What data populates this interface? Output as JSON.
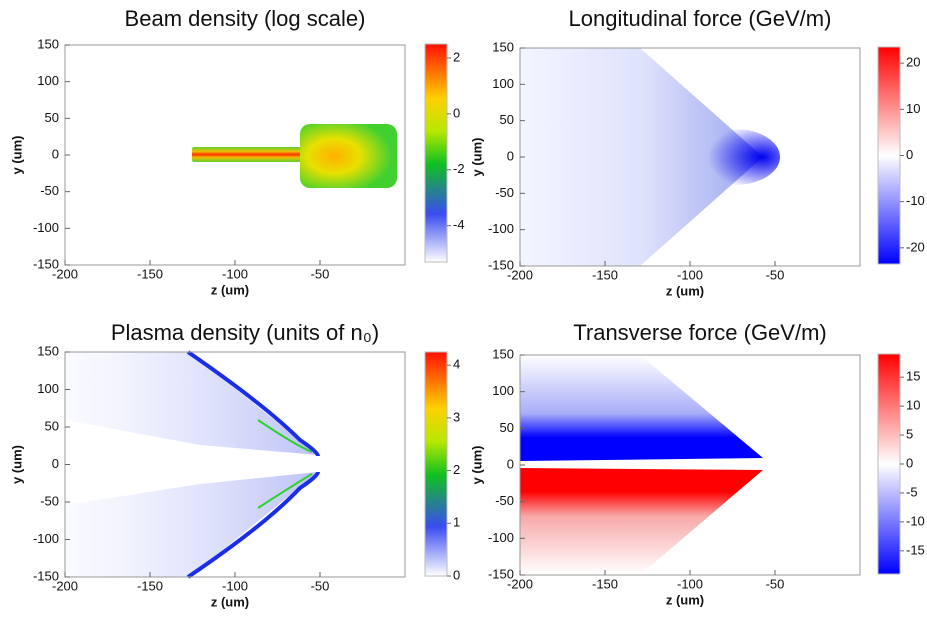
{
  "chart_data": [
    {
      "type": "heatmap",
      "title": "Beam density (log scale)",
      "xlabel": "z (um)",
      "ylabel": "y (um)",
      "xlim": [
        -200,
        0
      ],
      "xticks": [
        -200,
        -150,
        -100,
        -50
      ],
      "ylim": [
        -150,
        150
      ],
      "yticks": [
        -150,
        -100,
        -50,
        0,
        50,
        100,
        150
      ],
      "clim": [
        -5.3,
        2.5
      ],
      "cticks": [
        -4,
        -2,
        0,
        2
      ]
    },
    {
      "type": "heatmap",
      "title": "Longitudinal force (GeV/m)",
      "xlabel": "z (um)",
      "ylabel": "y (um)",
      "xlim": [
        -200,
        0
      ],
      "xticks": [
        -200,
        -150,
        -100,
        -50
      ],
      "ylim": [
        -150,
        150
      ],
      "yticks": [
        -150,
        -100,
        -50,
        0,
        50,
        100,
        150
      ],
      "clim": [
        -23.5,
        23.5
      ],
      "cticks": [
        -20,
        -10,
        0,
        10,
        20
      ]
    },
    {
      "type": "heatmap",
      "title": "Plasma density (units of n₀)",
      "xlabel": "z (um)",
      "ylabel": "y (um)",
      "xlim": [
        -200,
        0
      ],
      "xticks": [
        -200,
        -150,
        -100,
        -50
      ],
      "ylim": [
        -150,
        150
      ],
      "yticks": [
        -150,
        -100,
        -50,
        0,
        50,
        100,
        150
      ],
      "clim": [
        0,
        4.25
      ],
      "cticks": [
        0,
        1,
        2,
        3,
        4
      ]
    },
    {
      "type": "heatmap",
      "title": "Transverse force (GeV/m)",
      "xlabel": "z (um)",
      "ylabel": "y (um)",
      "xlim": [
        -200,
        0
      ],
      "xticks": [
        -200,
        -150,
        -100,
        -50
      ],
      "ylim": [
        -150,
        150
      ],
      "yticks": [
        -150,
        -100,
        -50,
        0,
        50,
        100,
        150
      ],
      "clim": [
        -19,
        19
      ],
      "cticks": [
        -15,
        -10,
        -5,
        0,
        5,
        10,
        15
      ]
    }
  ]
}
